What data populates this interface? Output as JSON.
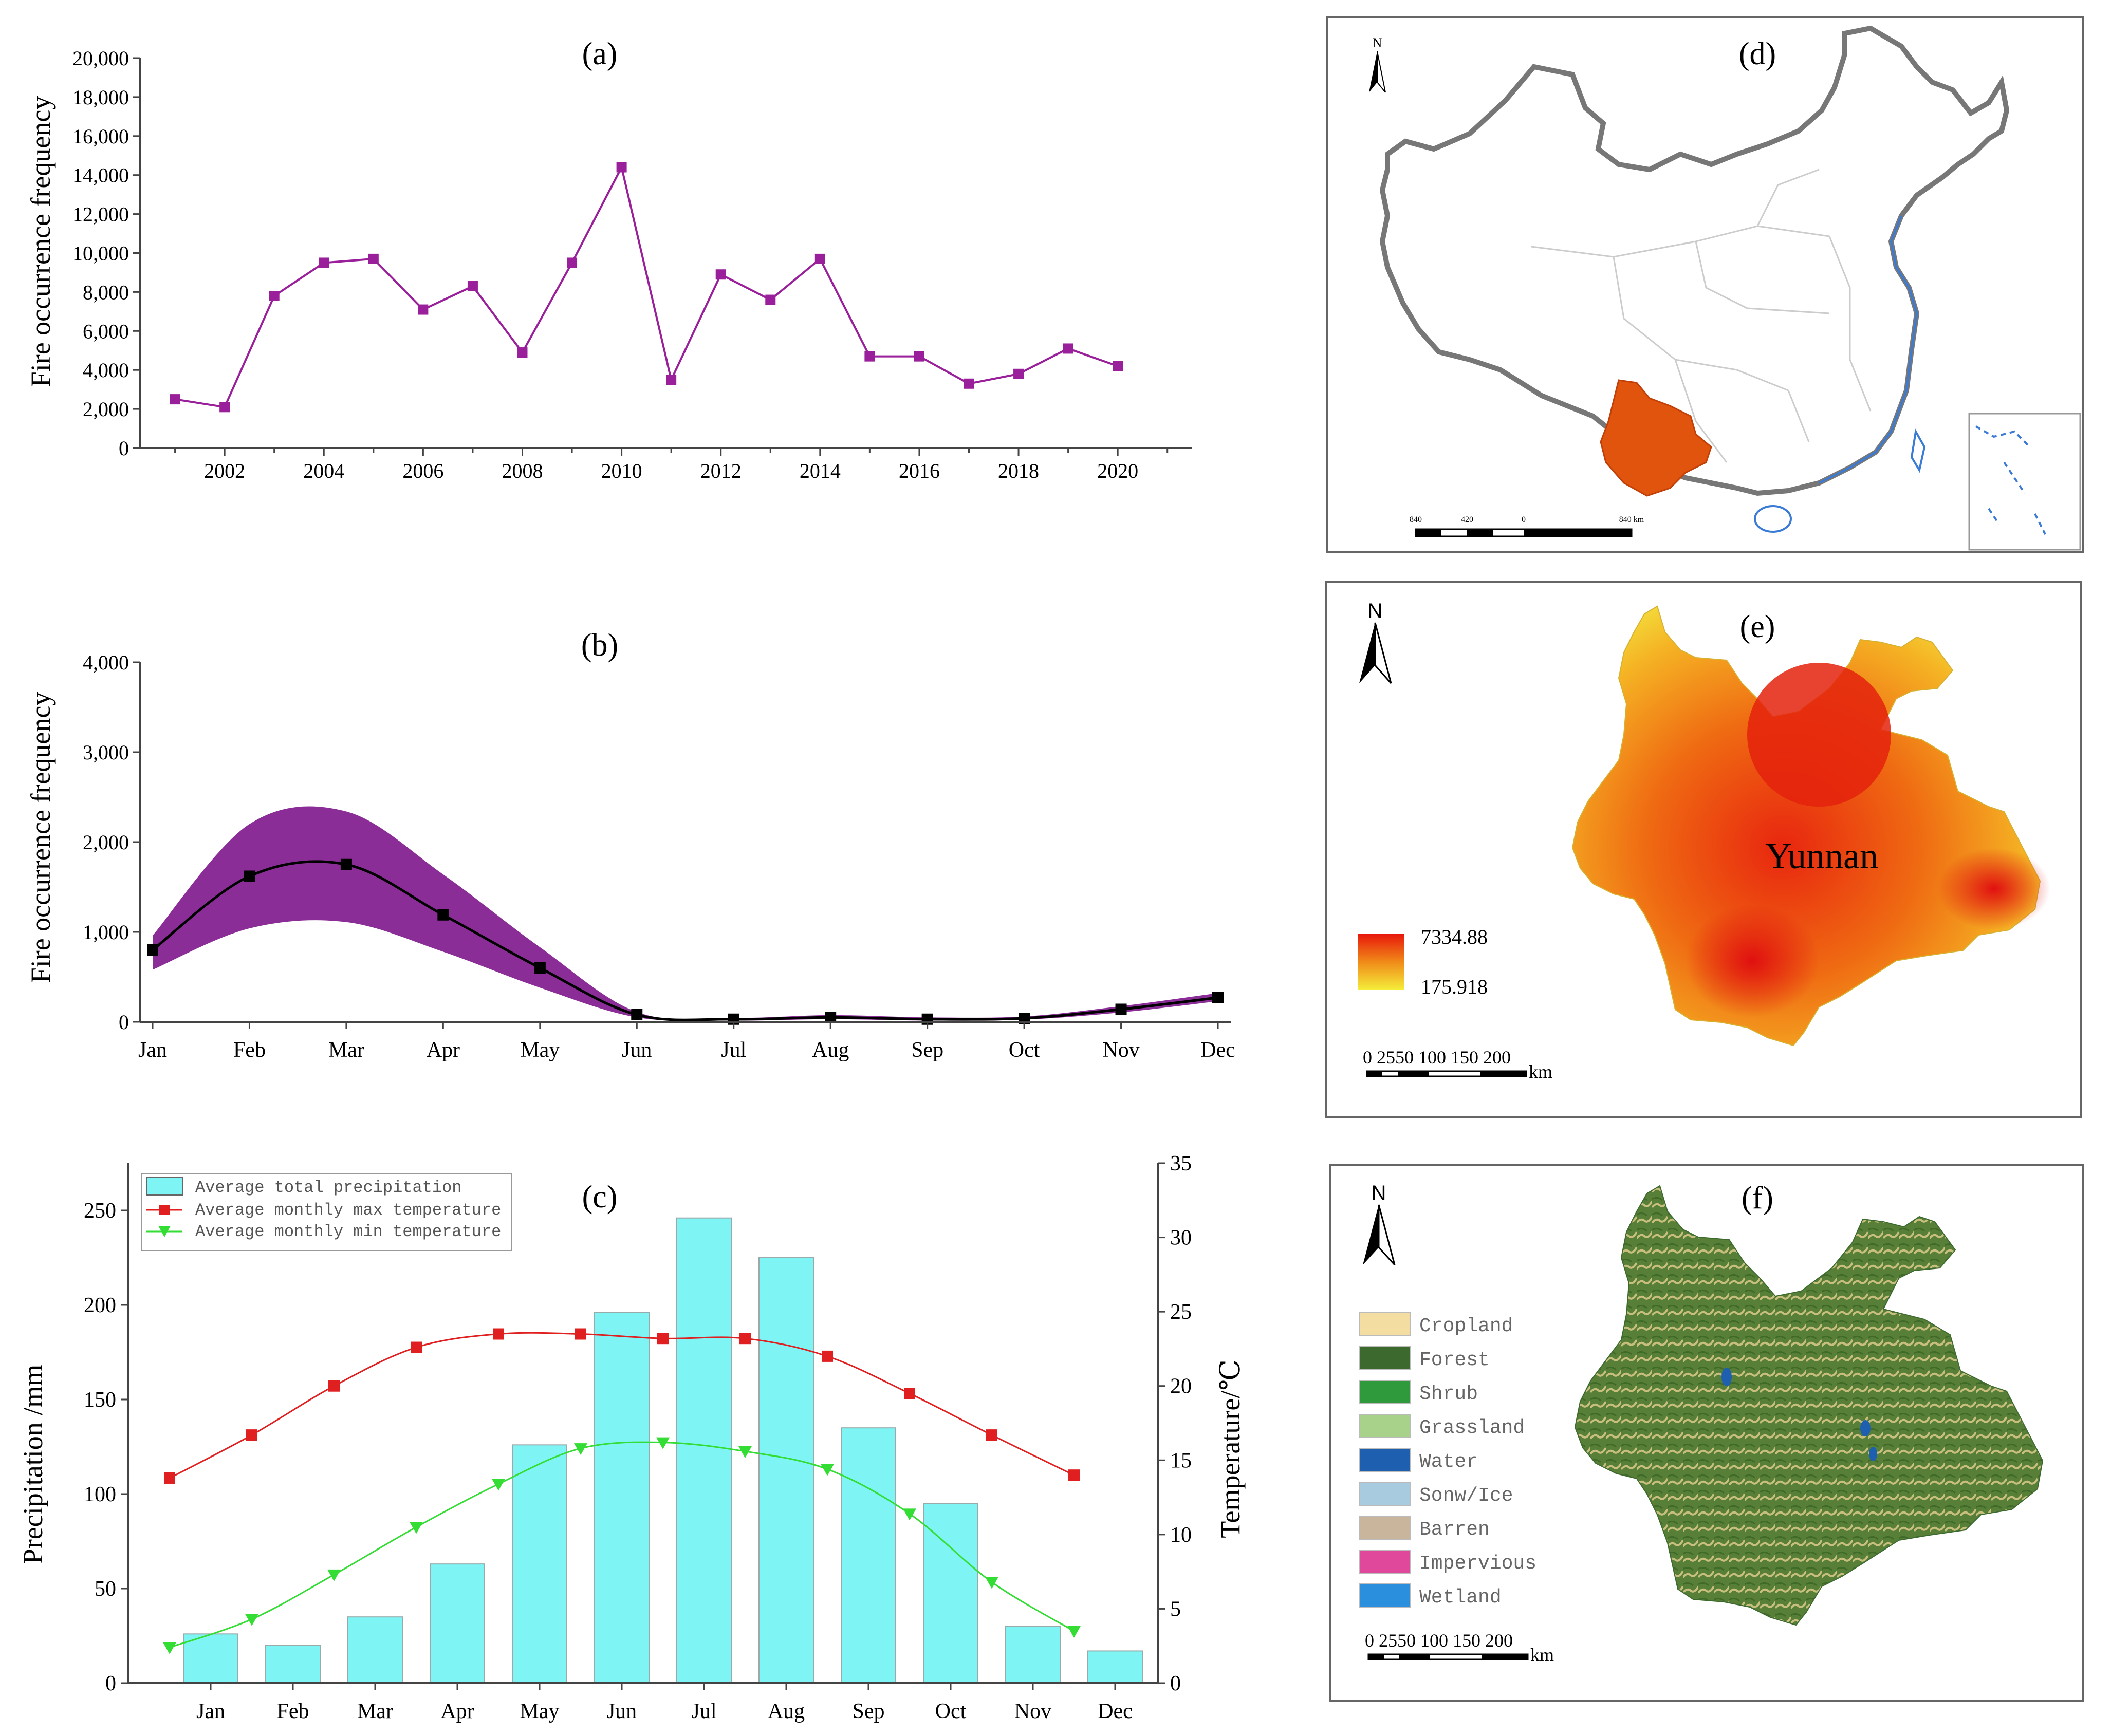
{
  "figure": {
    "panel_a": {
      "label": "(a)",
      "ylabel": "Fire occurrence frequency",
      "tick_labels_y": [
        "0",
        "2,000",
        "4,000",
        "6,000",
        "8,000",
        "10,000",
        "12,000",
        "14,000",
        "16,000",
        "18,000",
        "20,000"
      ],
      "tick_labels_x": [
        "2002",
        "2004",
        "2006",
        "2008",
        "2010",
        "2012",
        "2014",
        "2016",
        "2018",
        "2020"
      ]
    },
    "panel_b": {
      "label": "(b)",
      "ylabel": "Fire occurrence frequency",
      "tick_labels_y": [
        "0",
        "1,000",
        "2,000",
        "3,000",
        "4,000"
      ],
      "tick_labels_x": [
        "Jan",
        "Feb",
        "Mar",
        "Apr",
        "May",
        "Jun",
        "Jul",
        "Aug",
        "Sep",
        "Oct",
        "Nov",
        "Dec"
      ]
    },
    "panel_c": {
      "label": "(c)",
      "ylabel_left": "Precipitation /mm",
      "ylabel_right": "Temperature/℃",
      "tick_labels_y_left": [
        "0",
        "50",
        "100",
        "150",
        "200",
        "250"
      ],
      "tick_labels_y_right": [
        "0",
        "5",
        "10",
        "15",
        "20",
        "25",
        "30",
        "35"
      ],
      "tick_labels_x": [
        "Jan",
        "Feb",
        "Mar",
        "Apr",
        "May",
        "Jun",
        "Jul",
        "Aug",
        "Sep",
        "Oct",
        "Nov",
        "Dec"
      ],
      "legend": [
        "Average total precipitation",
        "Average monthly max temperature",
        "Average monthly min temperature"
      ]
    },
    "panel_d": {
      "label": "(d)",
      "north": "N",
      "scale_labels": [
        "840",
        "420",
        "0",
        "840 km"
      ]
    },
    "panel_e": {
      "label": "(e)",
      "north": "N",
      "region_name": "Yunnan",
      "legend_high": "7334.88",
      "legend_low": "175.918",
      "scale_text": "0 2550   100  150  200",
      "scale_unit": "km"
    },
    "panel_f": {
      "label": "(f)",
      "north": "N",
      "legend": [
        "Cropland",
        "Forest",
        "Shrub",
        "Grassland",
        "Water",
        "Sonw/Ice",
        "Barren",
        "Impervious",
        "Wetland"
      ],
      "scale_text": "0 2550   100  150  200",
      "scale_unit": "km"
    }
  },
  "colors": {
    "purple": "#9a1f9a",
    "band": "#8b2d96",
    "cyan": "#7ff4f4",
    "red": "#e02020",
    "green": "#33dd33",
    "yunnan": "#e0540e",
    "legend_f": [
      "#f3dda0",
      "#3c6a2e",
      "#2f9a3c",
      "#a8d18a",
      "#1e5fb0",
      "#a8cbe0",
      "#c9b59c",
      "#e0489c",
      "#2a8fdc"
    ]
  },
  "chart_data": [
    {
      "type": "line",
      "title": "(a)",
      "xlabel": "",
      "ylabel": "Fire occurrence frequency",
      "x": [
        2001,
        2002,
        2003,
        2004,
        2005,
        2006,
        2007,
        2008,
        2009,
        2010,
        2011,
        2012,
        2013,
        2014,
        2015,
        2016,
        2017,
        2018,
        2019,
        2020
      ],
      "values": [
        2500,
        2100,
        7800,
        9500,
        9700,
        7100,
        8300,
        4900,
        9500,
        14400,
        3500,
        8900,
        7600,
        9700,
        4700,
        4700,
        3300,
        3800,
        5100,
        4200
      ],
      "xlim": [
        2000.3,
        2021.5
      ],
      "ylim": [
        0,
        20000
      ],
      "grid": false
    },
    {
      "type": "line",
      "title": "(b)",
      "xlabel": "",
      "ylabel": "Fire occurrence frequency",
      "categories": [
        "Jan",
        "Feb",
        "Mar",
        "Apr",
        "May",
        "Jun",
        "Jul",
        "Aug",
        "Sep",
        "Oct",
        "Nov",
        "Dec"
      ],
      "series": [
        {
          "name": "Mean",
          "values": [
            800,
            1620,
            1750,
            1190,
            600,
            80,
            30,
            50,
            30,
            40,
            140,
            270
          ]
        },
        {
          "name": "Band upper",
          "values": [
            960,
            2200,
            2340,
            1640,
            830,
            110,
            45,
            75,
            50,
            60,
            175,
            320
          ]
        },
        {
          "name": "Band lower",
          "values": [
            580,
            1040,
            1110,
            780,
            380,
            50,
            15,
            30,
            15,
            25,
            105,
            230
          ]
        }
      ],
      "ylim": [
        0,
        4000
      ],
      "grid": false
    },
    {
      "type": "bar",
      "title": "(c)",
      "xlabel": "",
      "ylabel": "Precipitation /mm",
      "y2label": "Temperature/℃",
      "categories": [
        "Jan",
        "Feb",
        "Mar",
        "Apr",
        "May",
        "Jun",
        "Jul",
        "Aug",
        "Sep",
        "Oct",
        "Nov",
        "Dec"
      ],
      "series": [
        {
          "name": "Average total precipitation",
          "axis": "left",
          "kind": "bar",
          "values": [
            26,
            20,
            35,
            63,
            126,
            196,
            246,
            225,
            135,
            95,
            30,
            17
          ]
        },
        {
          "name": "Average monthly max temperature",
          "axis": "right",
          "kind": "line",
          "values": [
            13.8,
            16.7,
            20.0,
            22.6,
            23.5,
            23.5,
            23.2,
            23.2,
            22.0,
            19.5,
            16.7,
            14.0
          ]
        },
        {
          "name": "Average monthly min temperature",
          "axis": "right",
          "kind": "line",
          "values": [
            2.4,
            4.3,
            7.3,
            10.5,
            13.4,
            15.8,
            16.2,
            15.6,
            14.4,
            11.4,
            6.8,
            3.5
          ]
        }
      ],
      "ylim": [
        0,
        275
      ],
      "y2lim": [
        0,
        35
      ],
      "legend_position": "top-left",
      "grid": false
    }
  ]
}
